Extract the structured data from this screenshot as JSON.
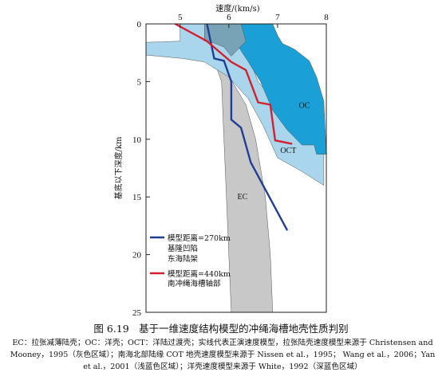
{
  "chart_data": {
    "type": "line",
    "xlabel": "速度/(km/s)",
    "ylabel": "基底以下深度/km",
    "xlim": [
      4.3,
      8
    ],
    "ylim": [
      0,
      25
    ],
    "y_inverted": true,
    "x_axis_position": "top",
    "xticks": [
      5,
      6,
      7,
      8
    ],
    "yticks": [
      0,
      5,
      10,
      15,
      20,
      25
    ],
    "regions": [
      {
        "label": "EC",
        "color": "#c8c8c8",
        "polygon": [
          [
            5.4,
            0
          ],
          [
            5.7,
            0
          ],
          [
            5.75,
            2
          ],
          [
            6.0,
            4.5
          ],
          [
            6.35,
            7
          ],
          [
            6.55,
            10
          ],
          [
            6.75,
            15
          ],
          [
            6.85,
            20
          ],
          [
            6.9,
            25
          ],
          [
            6.05,
            25
          ],
          [
            6.0,
            20
          ],
          [
            5.95,
            15
          ],
          [
            5.9,
            10
          ],
          [
            5.85,
            5
          ],
          [
            5.55,
            1.5
          ],
          [
            5.4,
            0
          ]
        ]
      },
      {
        "label": "OCT",
        "color": "#a9d6ec",
        "polygon": [
          [
            5.0,
            0
          ],
          [
            6.0,
            0
          ],
          [
            6.3,
            1.8
          ],
          [
            6.6,
            5
          ],
          [
            7.0,
            7
          ],
          [
            7.4,
            8
          ],
          [
            7.55,
            9.5
          ],
          [
            7.95,
            10.5
          ],
          [
            7.95,
            14
          ],
          [
            7.5,
            12.8
          ],
          [
            7.0,
            11.6
          ],
          [
            6.7,
            8.8
          ],
          [
            6.4,
            6.5
          ],
          [
            6.0,
            4.6
          ],
          [
            5.5,
            3.3
          ],
          [
            5.05,
            3
          ],
          [
            4.3,
            2.7
          ],
          [
            4.3,
            1.6
          ],
          [
            5.0,
            1.5
          ],
          [
            5.0,
            0
          ]
        ]
      },
      {
        "label": "OC",
        "color": "#1aa0d6",
        "polygon": [
          [
            5.5,
            0
          ],
          [
            6.9,
            0
          ],
          [
            7.0,
            1.0
          ],
          [
            7.1,
            1.7
          ],
          [
            7.35,
            2.2
          ],
          [
            7.65,
            3.2
          ],
          [
            7.8,
            4.6
          ],
          [
            7.95,
            6.7
          ],
          [
            8.0,
            11.3
          ],
          [
            7.8,
            11.3
          ],
          [
            7.75,
            10.5
          ],
          [
            7.5,
            10.5
          ],
          [
            7.2,
            9.2
          ],
          [
            6.9,
            7.5
          ],
          [
            6.65,
            5
          ],
          [
            6.4,
            3.3
          ],
          [
            6.2,
            2.0
          ],
          [
            5.9,
            1.5
          ],
          [
            5.5,
            1.5
          ],
          [
            5.5,
            0
          ]
        ]
      },
      {
        "label": "",
        "color": "#78a2b6",
        "polygon": [
          [
            5.5,
            0
          ],
          [
            6.25,
            0
          ],
          [
            6.35,
            1.5
          ],
          [
            6.05,
            2.8
          ],
          [
            5.9,
            2.0
          ],
          [
            5.6,
            1.5
          ],
          [
            5.5,
            1.5
          ]
        ]
      }
    ],
    "region_labels": [
      {
        "text": "EC",
        "x": 6.28,
        "y": 15.2
      },
      {
        "text": "OCT",
        "x": 7.22,
        "y": 11.2
      },
      {
        "text": "OC",
        "x": 7.55,
        "y": 7.3
      }
    ],
    "series": [
      {
        "name": "模型距离=270km",
        "legend_lines": [
          "基隆凹陷",
          "东海陆架"
        ],
        "color": "#1f3f96",
        "points": [
          [
            5.55,
            0
          ],
          [
            5.7,
            3.0
          ],
          [
            5.9,
            3.2
          ],
          [
            6.05,
            5.0
          ],
          [
            6.05,
            8.3
          ],
          [
            6.25,
            9.0
          ],
          [
            6.45,
            12.0
          ],
          [
            7.2,
            17.9
          ]
        ]
      },
      {
        "name": "模型距离=440km",
        "legend_lines": [
          "南冲绳海槽轴部"
        ],
        "color": "#d4202c",
        "points": [
          [
            4.9,
            0
          ],
          [
            5.55,
            1.5
          ],
          [
            6.05,
            3.3
          ],
          [
            6.35,
            4.0
          ],
          [
            6.6,
            6.8
          ],
          [
            6.85,
            7.0
          ],
          [
            6.95,
            10.1
          ],
          [
            7.3,
            10.4
          ]
        ]
      }
    ]
  },
  "caption": "图 6.19　基于一维速度结构模型的冲绳海槽地壳性质判别",
  "footnote": "EC：拉张减薄陆壳；OC：洋壳；OCT：洋陆过渡壳；实线代表正演速度模型，拉张陆壳速度模型来源于 Christensen and Mooney，1995（灰色区域）；南海北部陆缘 COT 地壳速度模型来源于 Nissen et al.，1995； Wang et al.，2006；Yan et al.，2001（浅蓝色区域）；洋壳速度模型来源于 White，1992（深蓝色区域）"
}
